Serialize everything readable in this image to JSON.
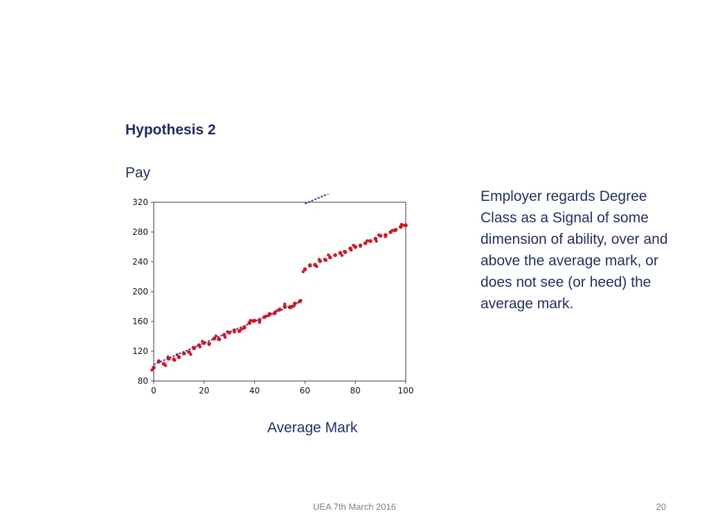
{
  "slide": {
    "title": "Hypothesis 2",
    "y_axis_label": "Pay",
    "x_axis_label": "Average Mark",
    "note": "Employer regards Degree Class as a Signal of some dimension of ability, over and above the average mark, or does not see (or heed) the average mark.",
    "footer": "UEA 7th March 2016",
    "page_number": "20"
  },
  "colors": {
    "text": "#1f2f6a",
    "points": "#e0101f",
    "fit_line": "#2233cc",
    "footer": "#7f7f7f"
  },
  "chart_data": {
    "type": "scatter",
    "xlabel": "Average Mark",
    "ylabel": "Pay",
    "xlim": [
      0,
      100
    ],
    "ylim": [
      80,
      320
    ],
    "xticks": [
      "0",
      "20",
      "40",
      "60",
      "80",
      "100"
    ],
    "yticks": [
      "80",
      "120",
      "160",
      "200",
      "240",
      "280",
      "320"
    ],
    "grid": false,
    "series": [
      {
        "segment": "below-60",
        "x_range": [
          0,
          59
        ],
        "fit": {
          "intercept": 102,
          "slope": 1.45
        },
        "x": [
          0,
          2,
          4,
          6,
          8,
          10,
          12,
          14,
          16,
          18,
          20,
          22,
          24,
          26,
          28,
          30,
          32,
          34,
          36,
          38,
          40,
          42,
          44,
          46,
          48,
          50,
          52,
          54,
          56,
          58
        ],
        "y": [
          98,
          106,
          103,
          110,
          109,
          112,
          117,
          119,
          124,
          128,
          131,
          130,
          137,
          136,
          142,
          145,
          148,
          147,
          152,
          158,
          161,
          162,
          166,
          170,
          171,
          176,
          180,
          179,
          184,
          187
        ]
      },
      {
        "segment": "60-and-above",
        "x_range": [
          60,
          100
        ],
        "fit": {
          "intercept": 231,
          "slope": 1.45
        },
        "x": [
          60,
          62,
          64,
          66,
          68,
          70,
          72,
          74,
          76,
          78,
          80,
          82,
          84,
          86,
          88,
          90,
          92,
          94,
          96,
          98,
          100
        ],
        "y": [
          230,
          235,
          236,
          241,
          243,
          246,
          249,
          252,
          253,
          258,
          260,
          262,
          265,
          268,
          271,
          275,
          276,
          280,
          283,
          287,
          289
        ]
      }
    ]
  }
}
